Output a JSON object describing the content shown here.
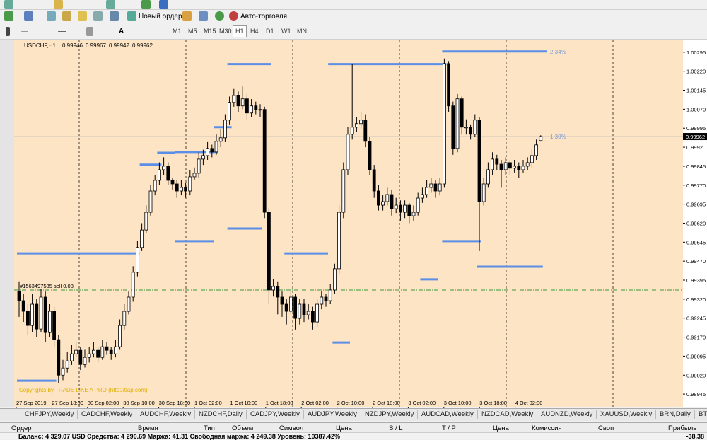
{
  "toolbar": {
    "new_order": "Новый ордер",
    "auto_trading": "Авто-торговля",
    "timeframes": [
      "M1",
      "M5",
      "M15",
      "M30",
      "H1",
      "H4",
      "D1",
      "W1",
      "MN"
    ]
  },
  "chart_data": {
    "type": "candlestick",
    "symbol": "USDCHF,H1",
    "candles": [
      [
        0.9935,
        0.9939,
        0.9925,
        0.99314
      ],
      [
        0.99314,
        0.9934,
        0.9923,
        0.99272
      ],
      [
        0.99272,
        0.993,
        0.9918,
        0.99216
      ],
      [
        0.99216,
        0.9934,
        0.9919,
        0.993
      ],
      [
        0.993,
        0.9932,
        0.9917,
        0.99202
      ],
      [
        0.99202,
        0.9936,
        0.9919,
        0.99328
      ],
      [
        0.99328,
        0.9935,
        0.9915,
        0.99188
      ],
      [
        0.99188,
        0.993,
        0.9917,
        0.99272
      ],
      [
        0.99272,
        0.9929,
        0.9913,
        0.9916
      ],
      [
        0.9916,
        0.9918,
        0.9899,
        0.9902
      ],
      [
        0.9902,
        0.9908,
        0.99,
        0.99048
      ],
      [
        0.99048,
        0.9911,
        0.9903,
        0.99076
      ],
      [
        0.99076,
        0.9914,
        0.9906,
        0.99104
      ],
      [
        0.99104,
        0.9915,
        0.9909,
        0.99118
      ],
      [
        0.99118,
        0.9913,
        0.9904,
        0.99062
      ],
      [
        0.99062,
        0.9912,
        0.9905,
        0.9909
      ],
      [
        0.9909,
        0.9913,
        0.9907,
        0.99104
      ],
      [
        0.99104,
        0.9915,
        0.9909,
        0.99118
      ],
      [
        0.99118,
        0.9913,
        0.9907,
        0.9909
      ],
      [
        0.9909,
        0.9916,
        0.9908,
        0.99132
      ],
      [
        0.99132,
        0.9915,
        0.991,
        0.99118
      ],
      [
        0.99118,
        0.9913,
        0.9908,
        0.99104
      ],
      [
        0.99104,
        0.9916,
        0.9909,
        0.99132
      ],
      [
        0.99132,
        0.9924,
        0.9912,
        0.99216
      ],
      [
        0.99216,
        0.993,
        0.992,
        0.99272
      ],
      [
        0.99272,
        0.9935,
        0.9926,
        0.99328
      ],
      [
        0.99328,
        0.9945,
        0.9931,
        0.99426
      ],
      [
        0.99426,
        0.9955,
        0.9941,
        0.99524
      ],
      [
        0.99524,
        0.9962,
        0.9951,
        0.99593
      ],
      [
        0.99593,
        0.9969,
        0.9958,
        0.99663
      ],
      [
        0.99663,
        0.9977,
        0.9965,
        0.99747
      ],
      [
        0.99747,
        0.9981,
        0.9973,
        0.99789
      ],
      [
        0.99789,
        0.9986,
        0.9977,
        0.99831
      ],
      [
        0.99831,
        0.9988,
        0.9981,
        0.99845
      ],
      [
        0.99845,
        0.9986,
        0.9977,
        0.99789
      ],
      [
        0.99789,
        0.998,
        0.9975,
        0.99775
      ],
      [
        0.99775,
        0.9979,
        0.9972,
        0.99747
      ],
      [
        0.99747,
        0.9979,
        0.9973,
        0.99761
      ],
      [
        0.99761,
        0.9978,
        0.9972,
        0.99747
      ],
      [
        0.99747,
        0.9983,
        0.9973,
        0.99803
      ],
      [
        0.99803,
        0.9984,
        0.9979,
        0.99817
      ],
      [
        0.99817,
        0.999,
        0.998,
        0.99873
      ],
      [
        0.99873,
        0.9991,
        0.9985,
        0.99887
      ],
      [
        0.99887,
        0.9994,
        0.9987,
        0.99915
      ],
      [
        0.99915,
        0.9993,
        0.9988,
        0.99901
      ],
      [
        0.99901,
        0.9997,
        0.9989,
        0.99943
      ],
      [
        0.99943,
        0.9999,
        0.9992,
        0.99957
      ],
      [
        0.99957,
        1.0005,
        0.9994,
        1.00027
      ],
      [
        1.00027,
        1.0012,
        1.0001,
        1.00097
      ],
      [
        1.00097,
        1.0015,
        1.0008,
        1.00124
      ],
      [
        1.00124,
        1.0014,
        1.0006,
        1.00083
      ],
      [
        1.00083,
        1.0016,
        1.0007,
        1.00111
      ],
      [
        1.00111,
        1.0013,
        1.0003,
        1.00055
      ],
      [
        1.00055,
        1.0011,
        1.0004,
        1.00083
      ],
      [
        1.00083,
        1.001,
        1.0005,
        1.00069
      ],
      [
        1.00069,
        1.0009,
        1.0004,
        1.00069
      ],
      [
        1.00069,
        1.0008,
        0.9964,
        0.99663
      ],
      [
        0.99663,
        0.9968,
        0.993,
        0.99356
      ],
      [
        0.99356,
        0.994,
        0.9933,
        0.9937
      ],
      [
        0.9937,
        0.9939,
        0.9926,
        0.99328
      ],
      [
        0.99328,
        0.9935,
        0.9925,
        0.993
      ],
      [
        0.993,
        0.9932,
        0.9922,
        0.99272
      ],
      [
        0.99272,
        0.9935,
        0.9926,
        0.99328
      ],
      [
        0.99328,
        0.9934,
        0.992,
        0.99244
      ],
      [
        0.99244,
        0.9932,
        0.9922,
        0.993
      ],
      [
        0.993,
        0.9932,
        0.9923,
        0.99258
      ],
      [
        0.99258,
        0.993,
        0.9924,
        0.99272
      ],
      [
        0.99272,
        0.9929,
        0.992,
        0.9923
      ],
      [
        0.9923,
        0.9932,
        0.9921,
        0.993
      ],
      [
        0.993,
        0.9935,
        0.9928,
        0.99328
      ],
      [
        0.99328,
        0.9934,
        0.9929,
        0.99314
      ],
      [
        0.99314,
        0.9938,
        0.993,
        0.99356
      ],
      [
        0.99356,
        0.9946,
        0.9934,
        0.9944
      ],
      [
        0.9944,
        0.9969,
        0.9942,
        0.99663
      ],
      [
        0.99663,
        0.9986,
        0.9964,
        0.99831
      ],
      [
        0.99831,
        1.0,
        0.9981,
        0.99971
      ],
      [
        0.99971,
        1.0025,
        0.9995,
        0.99999
      ],
      [
        0.99999,
        1.0004,
        0.9998,
        1.00013
      ],
      [
        1.00013,
        1.0006,
        0.9999,
        1.00027
      ],
      [
        1.00027,
        1.0005,
        0.9992,
        0.99943
      ],
      [
        0.99943,
        0.9996,
        0.9981,
        0.99831
      ],
      [
        0.99831,
        0.9985,
        0.9972,
        0.99747
      ],
      [
        0.99747,
        0.9977,
        0.9967,
        0.99691
      ],
      [
        0.99691,
        0.9973,
        0.9967,
        0.99705
      ],
      [
        0.99705,
        0.9976,
        0.9969,
        0.99733
      ],
      [
        0.99733,
        0.9975,
        0.9965,
        0.99677
      ],
      [
        0.99677,
        0.9972,
        0.9966,
        0.99691
      ],
      [
        0.99691,
        0.9971,
        0.9963,
        0.99663
      ],
      [
        0.99663,
        0.9971,
        0.9964,
        0.99691
      ],
      [
        0.99691,
        0.997,
        0.9962,
        0.99649
      ],
      [
        0.99649,
        0.9969,
        0.9963,
        0.99663
      ],
      [
        0.99663,
        0.9974,
        0.9965,
        0.99719
      ],
      [
        0.99719,
        0.9976,
        0.997,
        0.99733
      ],
      [
        0.99733,
        0.9979,
        0.9972,
        0.99761
      ],
      [
        0.99761,
        0.998,
        0.9974,
        0.99775
      ],
      [
        0.99775,
        0.9979,
        0.9972,
        0.99747
      ],
      [
        0.99747,
        0.998,
        0.9973,
        0.99775
      ],
      [
        0.99775,
        1.0027,
        0.9976,
        1.0025
      ],
      [
        1.0025,
        1.0026,
        1.0006,
        1.00083
      ],
      [
        1.00083,
        1.001,
        0.9989,
        0.99915
      ],
      [
        0.99915,
        1.0013,
        0.999,
        1.00111
      ],
      [
        1.00111,
        1.0012,
        0.9997,
        0.99999
      ],
      [
        0.99999,
        1.0003,
        0.9997,
        0.99999
      ],
      [
        0.99999,
        1.0001,
        0.9995,
        0.99971
      ],
      [
        0.99971,
        1.0005,
        0.9996,
        1.00027
      ],
      [
        1.00027,
        1.0004,
        0.9951,
        0.99705
      ],
      [
        0.99705,
        0.998,
        0.9969,
        0.99775
      ],
      [
        0.99775,
        0.9986,
        0.9976,
        0.99831
      ],
      [
        0.99831,
        0.999,
        0.9981,
        0.99873
      ],
      [
        0.99873,
        0.9989,
        0.9983,
        0.99853
      ],
      [
        0.99853,
        0.9987,
        0.9976,
        0.99831
      ],
      [
        0.99831,
        0.9988,
        0.9981,
        0.99859
      ],
      [
        0.99859,
        0.9987,
        0.9981,
        0.99837
      ],
      [
        0.99837,
        0.9987,
        0.9982,
        0.99845
      ],
      [
        0.99845,
        0.9986,
        0.998,
        0.99831
      ],
      [
        0.99831,
        0.9987,
        0.9982,
        0.99845
      ],
      [
        0.99845,
        0.9988,
        0.9983,
        0.99859
      ],
      [
        0.99859,
        0.9991,
        0.9984,
        0.99887
      ],
      [
        0.99887,
        0.9995,
        0.9987,
        0.99929
      ],
      [
        0.99946,
        0.99967,
        0.99942,
        0.99962
      ]
    ],
    "ylim": [
      0.98895,
      1.00342
    ],
    "yticks": [
      1.00295,
      {
        "value": 1.0022,
        "label": "1.00220"
      },
      1.00145,
      {
        "value": 1.0007,
        "label": "1.00070"
      },
      0.99995,
      0.9992,
      0.99845,
      {
        "value": 0.9977,
        "label": "0.99770"
      },
      0.99695,
      {
        "value": 0.9962,
        "label": "0.99620"
      },
      0.99545,
      {
        "value": 0.9947,
        "label": "0.99470"
      },
      0.99395,
      {
        "value": 0.9932,
        "label": "0.99320"
      },
      0.99245,
      {
        "value": 0.9917,
        "label": "0.99170"
      },
      0.99095,
      {
        "value": 0.9902,
        "label": "0.99020"
      },
      0.98945
    ],
    "time_labels": [
      "27 Sep 2019",
      "27 Sep 18:00",
      "30 Sep 02:00",
      "30 Sep 10:00",
      "30 Sep 18:00",
      "1 Oct 02:00",
      "1 Oct 10:00",
      "1 Oct 18:00",
      "2 Oct 02:00",
      "2 Oct 10:00",
      "2 Oct 18:00",
      "3 Oct 02:00",
      "3 Oct 10:00",
      "3 Oct 18:00",
      "4 Oct 02:00"
    ],
    "levels": [
      {
        "from": 0,
        "to": 27,
        "price": 0.99501
      },
      {
        "from": 0,
        "to": 8,
        "price": 0.98998
      },
      {
        "from": 48,
        "to": 57,
        "price": 1.00248
      },
      {
        "from": 71,
        "to": 97,
        "price": 1.00248
      },
      {
        "from": 97,
        "to": 120,
        "price": 1.00298
      },
      {
        "from": 48,
        "to": 55,
        "price": 0.99599
      },
      {
        "from": 61,
        "to": 70,
        "price": 0.99501
      },
      {
        "from": 97,
        "to": 105,
        "price": 0.99549
      },
      {
        "from": 105,
        "to": 119,
        "price": 0.99448
      },
      {
        "from": 36,
        "to": 45,
        "price": 0.99901
      },
      {
        "from": 36,
        "to": 44,
        "price": 0.99549
      },
      {
        "from": 28,
        "to": 32,
        "price": 0.99851
      },
      {
        "from": 32,
        "to": 35,
        "price": 0.99898
      },
      {
        "from": 45,
        "to": 48,
        "price": 0.99999
      },
      {
        "from": 92,
        "to": 95,
        "price": 0.99398
      },
      {
        "from": 72,
        "to": 75,
        "price": 0.99149
      }
    ],
    "annotations": [
      {
        "text": "2.34%",
        "price": 1.00298
      },
      {
        "text": "1.30%",
        "price": 0.99962
      }
    ],
    "order_line": {
      "label": "#1563497585 sell 0.03",
      "price": 0.99356
    },
    "copyright": "Copyrights by TRADE LIKE A PRO (http://tlap.com)",
    "background": "#fde4c4",
    "level_color": "#5b8ee6"
  },
  "tabs": [
    "CHFJPY,Weekly",
    "CADCHF,Weekly",
    "AUDCHF,Weekly",
    "NZDCHF,Daily",
    "CADJPY,Weekly",
    "AUDJPY,Weekly",
    "NZDJPY,Weekly",
    "AUDCAD,Weekly",
    "NZDCAD,Weekly",
    "AUDNZD,Weekly",
    "XAUUSD,Weekly",
    "BRN,Daily",
    "BTC"
  ],
  "terminal": {
    "columns": [
      "Ордер",
      "Время",
      "Тип",
      "Объем",
      "Символ",
      "Цена",
      "S / L",
      "T / P",
      "Цена",
      "Комиссия",
      "Своп",
      "Прибыль"
    ],
    "status": "Баланс: 4 329.07 USD  Средства: 4 290.69  Маржа: 41.31  Свободная маржа: 4 249.38  Уровень: 10387.42%",
    "profit": -38.38
  }
}
